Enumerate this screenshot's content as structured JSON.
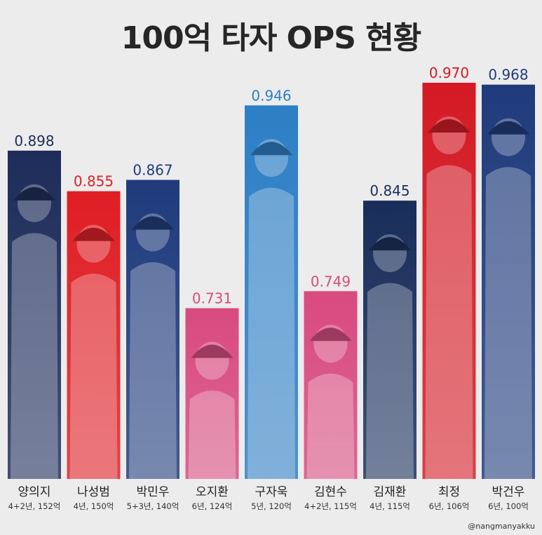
{
  "title": "100억 타자 OPS 현황",
  "credit": "@nangmanyakku",
  "chart_data": {
    "type": "bar",
    "title": "100억 타자 OPS 현황",
    "categories": [
      "양의지",
      "나성범",
      "박민우",
      "오지환",
      "구자욱",
      "김현수",
      "김재환",
      "최정",
      "박건우"
    ],
    "contracts": [
      "4+2년, 152억",
      "4년, 150억",
      "5+3년, 140억",
      "6년, 124억",
      "5년, 120억",
      "4+2년, 115억",
      "4년, 115억",
      "6년, 106억",
      "6년, 100억"
    ],
    "values": [
      0.898,
      0.855,
      0.867,
      0.731,
      0.946,
      0.749,
      0.845,
      0.97,
      0.968
    ],
    "value_labels": [
      "0.898",
      "0.855",
      "0.867",
      "0.731",
      "0.946",
      "0.749",
      "0.845",
      "0.970",
      "0.968"
    ],
    "colors": [
      "#1d2c5a",
      "#e01e24",
      "#1f3b7c",
      "#d94a7e",
      "#2d7fc5",
      "#d94a7e",
      "#182d5a",
      "#d41a24",
      "#1f3b7c"
    ],
    "label_colors": [
      "#1d2c5a",
      "#e01e24",
      "#1f3b7c",
      "#d94a7e",
      "#2d7fc5",
      "#d94a7e",
      "#182d5a",
      "#d41a24",
      "#1f3b7c"
    ],
    "ylim": [
      0.55,
      0.97
    ],
    "xlabel": "",
    "ylabel": "",
    "grid": false,
    "legend": "none"
  }
}
